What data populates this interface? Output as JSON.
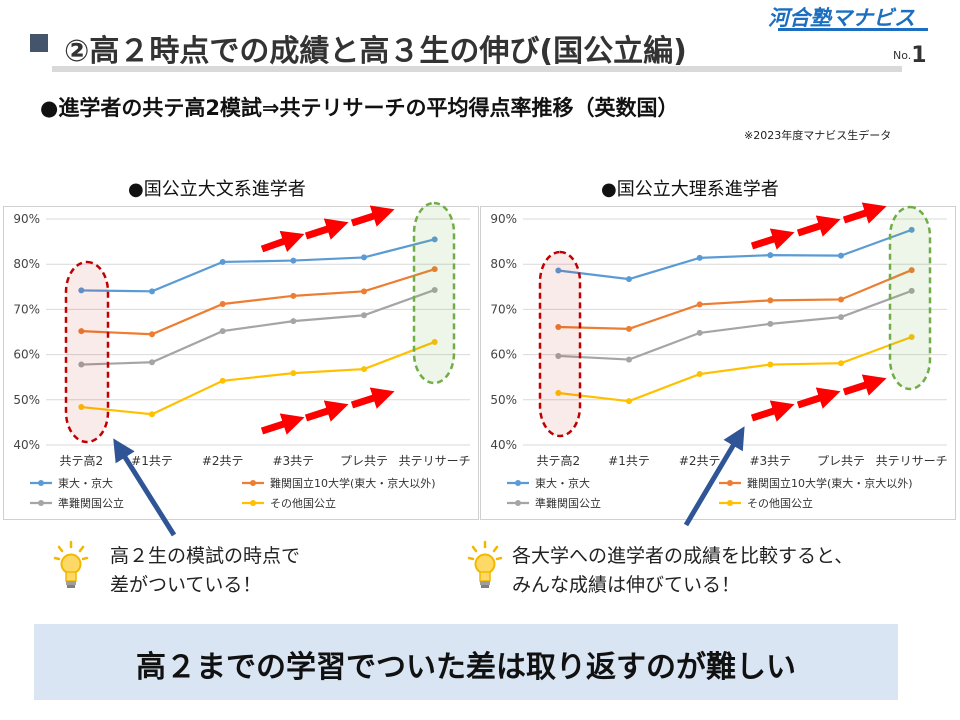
{
  "logo_text": "河合塾マナビス",
  "title": "②高２時点での成績と高３生の伸び(国公立編)",
  "page_no_label": "No.",
  "page_no": "1",
  "subtitle": "●進学者の共テ高2模試⇒共テリサーチの平均得点率推移（英数国）",
  "source_note": "※2023年度マナビス生データ",
  "colors": {
    "s1": "#5b9bd5",
    "s2": "#ed7d31",
    "s3": "#a5a5a5",
    "s4": "#ffc000",
    "arrow_red": "#ff0000",
    "arrow_blue": "#2f5597",
    "hl_red": "#c00000",
    "hl_green": "#70ad47"
  },
  "chart_data": [
    {
      "type": "line",
      "title": "●国公立大文系進学者",
      "categories": [
        "共テ高2",
        "#1共テ",
        "#2共テ",
        "#3共テ",
        "プレ共テ",
        "共テリサーチ"
      ],
      "ylim": [
        40,
        90
      ],
      "yticks": [
        "40%",
        "50%",
        "60%",
        "70%",
        "80%",
        "90%"
      ],
      "grid": true,
      "legend": "bottom",
      "series": [
        {
          "name": "東大・京大",
          "values": [
            74.2,
            74.0,
            80.5,
            80.8,
            81.5,
            85.5
          ]
        },
        {
          "name": "難関国立10大学(東大・京大以外)",
          "values": [
            65.2,
            64.5,
            71.2,
            73.0,
            74.0,
            78.9
          ]
        },
        {
          "name": "準難関国公立",
          "values": [
            57.8,
            58.3,
            65.2,
            67.4,
            68.7,
            74.3
          ]
        },
        {
          "name": "その他国公立",
          "values": [
            48.4,
            46.8,
            54.2,
            55.9,
            56.8,
            62.8
          ]
        }
      ]
    },
    {
      "type": "line",
      "title": "●国公立大理系進学者",
      "categories": [
        "共テ高2",
        "#1共テ",
        "#2共テ",
        "#3共テ",
        "プレ共テ",
        "共テリサーチ"
      ],
      "ylim": [
        40,
        90
      ],
      "yticks": [
        "40%",
        "50%",
        "60%",
        "70%",
        "80%",
        "90%"
      ],
      "grid": true,
      "legend": "bottom",
      "series": [
        {
          "name": "東大・京大",
          "values": [
            78.6,
            76.7,
            81.4,
            82.0,
            81.9,
            87.6
          ]
        },
        {
          "name": "難関国立10大学(東大・京大以外)",
          "values": [
            66.1,
            65.7,
            71.1,
            72.0,
            72.2,
            78.7
          ]
        },
        {
          "name": "準難関国公立",
          "values": [
            59.7,
            58.9,
            64.8,
            66.8,
            68.3,
            74.1
          ]
        },
        {
          "name": "その他国公立",
          "values": [
            51.5,
            49.7,
            55.7,
            57.8,
            58.1,
            63.9
          ]
        }
      ]
    }
  ],
  "tips": [
    {
      "line1": "高２生の模試の時点で",
      "line2": "差がついている！"
    },
    {
      "line1": "各大学への進学者の成績を比較すると、",
      "line2": "みんな成績は伸びている！"
    }
  ],
  "banner": "高２までの学習でついた差は取り返すのが難しい"
}
